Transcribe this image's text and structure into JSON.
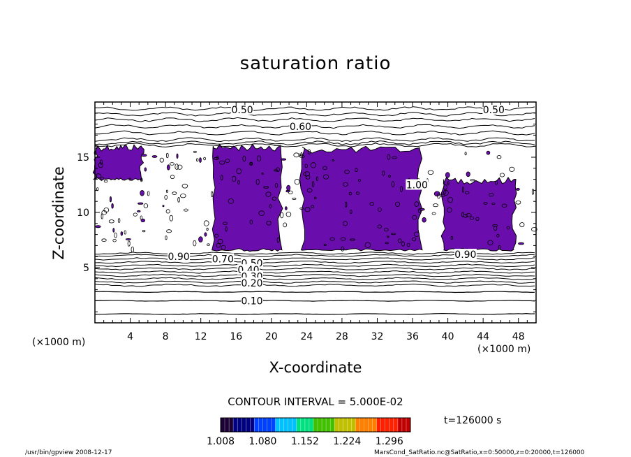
{
  "chart_data": {
    "type": "contour",
    "title": "saturation ratio",
    "xlabel": "X-coordinate",
    "ylabel": "Z-coordinate",
    "x_unit": "(×1000 m)",
    "y_unit": "(×1000 m)",
    "xlim": [
      0,
      50
    ],
    "ylim": [
      0,
      20
    ],
    "x_ticks": [
      4,
      8,
      12,
      16,
      20,
      24,
      28,
      32,
      36,
      40,
      44,
      48
    ],
    "y_ticks": [
      5,
      10,
      15
    ],
    "contour_labels": [
      {
        "text": "0.50",
        "x": 16.7,
        "z": 19.3
      },
      {
        "text": "0.50",
        "x": 45.2,
        "z": 19.3
      },
      {
        "text": "0.60",
        "x": 23.3,
        "z": 17.8
      },
      {
        "text": "1.00",
        "x": 36.5,
        "z": 12.5
      },
      {
        "text": "0.90",
        "x": 9.5,
        "z": 6.0
      },
      {
        "text": "0.70",
        "x": 14.5,
        "z": 5.8
      },
      {
        "text": "0.50",
        "x": 17.8,
        "z": 5.4
      },
      {
        "text": "0.40",
        "x": 17.4,
        "z": 4.8
      },
      {
        "text": "0.30",
        "x": 17.8,
        "z": 4.2
      },
      {
        "text": "0.20",
        "x": 17.8,
        "z": 3.6
      },
      {
        "text": "0.10",
        "x": 17.8,
        "z": 2.0
      },
      {
        "text": "0.90",
        "x": 42.0,
        "z": 6.2
      }
    ],
    "supersaturated_regions": [
      {
        "x": [
          0.1,
          5.3
        ],
        "z": [
          13.0,
          16.0
        ]
      },
      {
        "x": [
          13.5,
          21.0
        ],
        "z": [
          6.6,
          16.0
        ]
      },
      {
        "x": [
          23.5,
          36.8
        ],
        "z": [
          6.6,
          15.8
        ]
      },
      {
        "x": [
          39.5,
          47.5
        ],
        "z": [
          6.6,
          13.0
        ]
      }
    ],
    "colorbar": {
      "ticks": [
        "1.008",
        "1.080",
        "1.152",
        "1.224",
        "1.296"
      ],
      "range": [
        1.008,
        1.332
      ],
      "colors": [
        "#1a0033",
        "#000080",
        "#0040ff",
        "#00c0ff",
        "#00e080",
        "#40c000",
        "#c0c000",
        "#ff8000",
        "#ff2000",
        "#c00000"
      ]
    },
    "contour_interval": "CONTOUR INTERVAL = 5.000E-02",
    "time_label": "t=126000 s"
  },
  "footer": {
    "left": "/usr/bin/gpview   2008-12-17",
    "right": "MarsCond_SatRatio.nc@SatRatio,x=0:50000,z=0:20000,t=126000"
  },
  "colors": {
    "fill": "#6a0dad",
    "line": "#000000"
  }
}
